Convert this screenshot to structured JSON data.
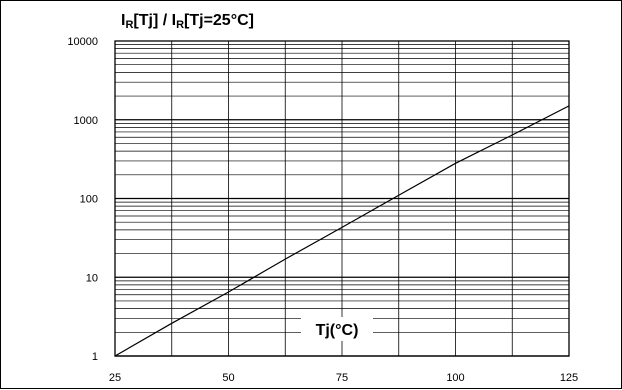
{
  "chart_data": {
    "type": "line",
    "title": {
      "parts": [
        {
          "text": "I",
          "sub": false
        },
        {
          "text": "R",
          "sub": true
        },
        {
          "text": "[Tj] / I",
          "sub": false
        },
        {
          "text": "R",
          "sub": true
        },
        {
          "text": "[Tj=25°C]",
          "sub": false
        }
      ]
    },
    "xlabel": "Tj(°C)",
    "ylabel": "",
    "xlim": [
      25,
      125
    ],
    "ylim": [
      1,
      10000
    ],
    "yscale": "log",
    "grid": true,
    "x_ticks": [
      {
        "value": 25,
        "label": "25"
      },
      {
        "value": 50,
        "label": "50"
      },
      {
        "value": 75,
        "label": "75"
      },
      {
        "value": 100,
        "label": "100"
      },
      {
        "value": 125,
        "label": "125"
      }
    ],
    "x_grid_values": [
      37.5,
      50,
      62.5,
      75,
      87.5,
      100,
      112.5
    ],
    "y_ticks": [
      {
        "value": 1,
        "label": "1"
      },
      {
        "value": 10,
        "label": "10"
      },
      {
        "value": 100,
        "label": "100"
      },
      {
        "value": 1000,
        "label": "1000"
      },
      {
        "value": 10000,
        "label": "10000"
      }
    ],
    "series": [
      {
        "x": [
          25,
          37.5,
          50,
          62.5,
          75,
          87.5,
          100,
          112.5,
          125
        ],
        "y": [
          1,
          2.6,
          6.5,
          17,
          43,
          110,
          280,
          640,
          1500
        ]
      }
    ],
    "colors": {
      "line": "#000000",
      "grid": "#000000",
      "background": "#ffffff"
    }
  }
}
